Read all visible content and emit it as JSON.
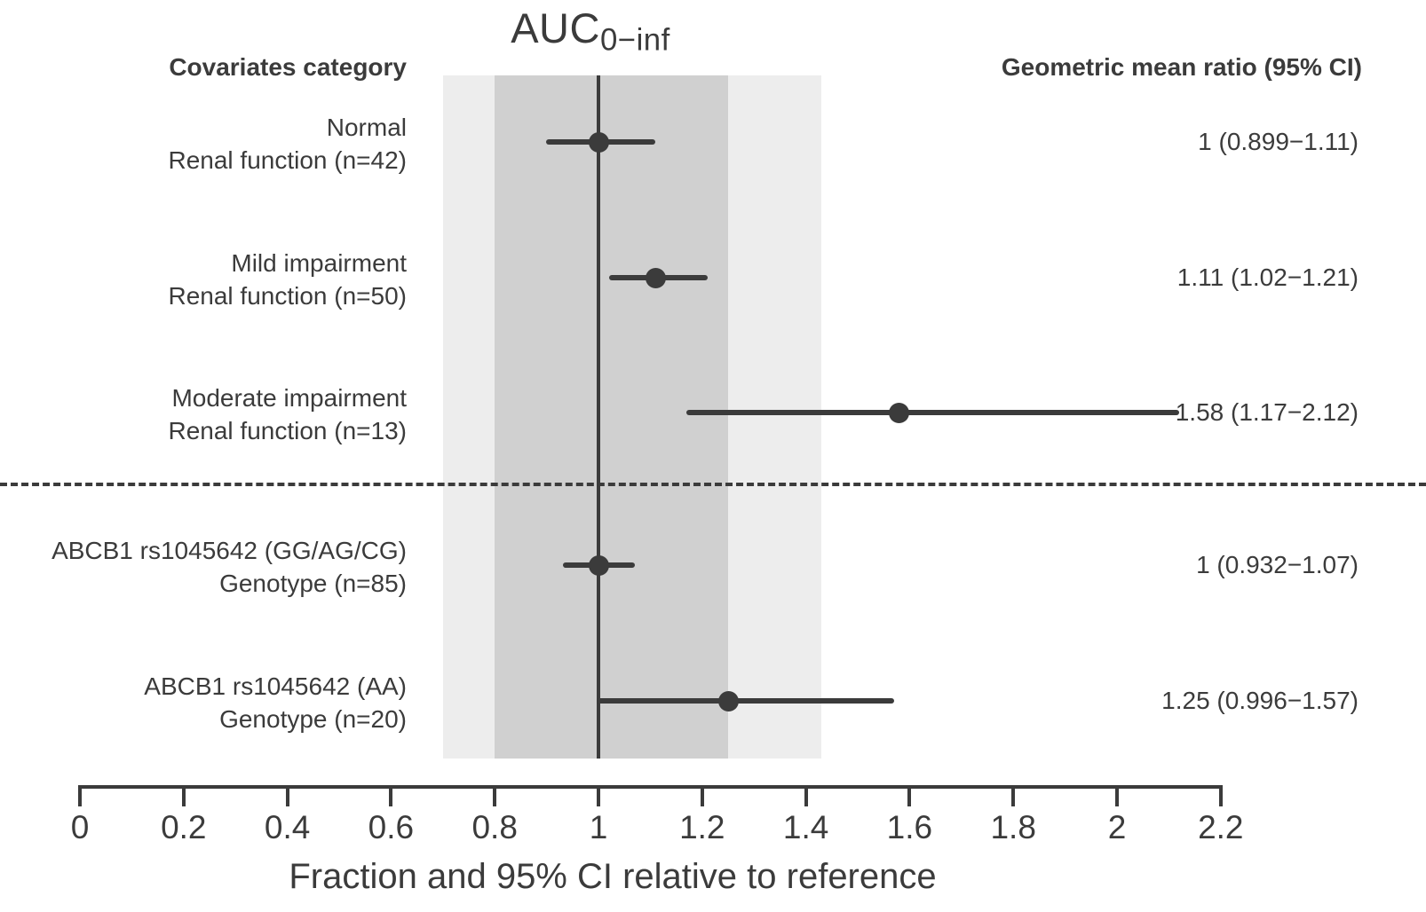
{
  "colors": {
    "ink": "#3b3b3b",
    "band_outer": "#ededed",
    "band_inner": "#d0d0d0",
    "background": "#ffffff"
  },
  "chart_data": {
    "type": "forest",
    "title_main": "AUC",
    "title_sub": "0−inf",
    "left_header": "Covariates category",
    "right_header": "Geometric mean ratio (95% CI)",
    "xlabel": "Fraction and 95% CI relative to reference",
    "xlim": [
      0,
      2.2
    ],
    "x_ticks": [
      {
        "value": 0,
        "label": "0"
      },
      {
        "value": 0.2,
        "label": "0.2"
      },
      {
        "value": 0.4,
        "label": "0.4"
      },
      {
        "value": 0.6,
        "label": "0.6"
      },
      {
        "value": 0.8,
        "label": "0.8"
      },
      {
        "value": 1,
        "label": "1"
      },
      {
        "value": 1.2,
        "label": "1.2"
      },
      {
        "value": 1.4,
        "label": "1.4"
      },
      {
        "value": 1.6,
        "label": "1.6"
      },
      {
        "value": 1.8,
        "label": "1.8"
      },
      {
        "value": 2,
        "label": "2"
      },
      {
        "value": 2.2,
        "label": "2.2"
      }
    ],
    "reference_line": 1,
    "reference_bands": [
      {
        "from": 0.7,
        "to": 1.43,
        "color": "#ededed",
        "name": "outer-band"
      },
      {
        "from": 0.8,
        "to": 1.25,
        "color": "#d0d0d0",
        "name": "inner-band"
      }
    ],
    "separator_after_row_index": 2,
    "rows": [
      {
        "label_line1": "Normal",
        "label_line2": "Renal function (n=42)",
        "estimate": 1,
        "ci_low": 0.899,
        "ci_high": 1.11,
        "value_text": "1 (0.899−1.11)"
      },
      {
        "label_line1": "Mild impairment",
        "label_line2": "Renal function (n=50)",
        "estimate": 1.11,
        "ci_low": 1.02,
        "ci_high": 1.21,
        "value_text": "1.11 (1.02−1.21)"
      },
      {
        "label_line1": "Moderate impairment",
        "label_line2": "Renal function (n=13)",
        "estimate": 1.58,
        "ci_low": 1.17,
        "ci_high": 2.12,
        "value_text": "1.58 (1.17−2.12)"
      },
      {
        "label_line1": "ABCB1 rs1045642 (GG/AG/CG)",
        "label_line2": "Genotype (n=85)",
        "estimate": 1,
        "ci_low": 0.932,
        "ci_high": 1.07,
        "value_text": "1 (0.932−1.07)"
      },
      {
        "label_line1": "ABCB1 rs1045642 (AA)",
        "label_line2": "Genotype (n=20)",
        "estimate": 1.25,
        "ci_low": 0.996,
        "ci_high": 1.57,
        "value_text": "1.25 (0.996−1.57)"
      }
    ]
  }
}
